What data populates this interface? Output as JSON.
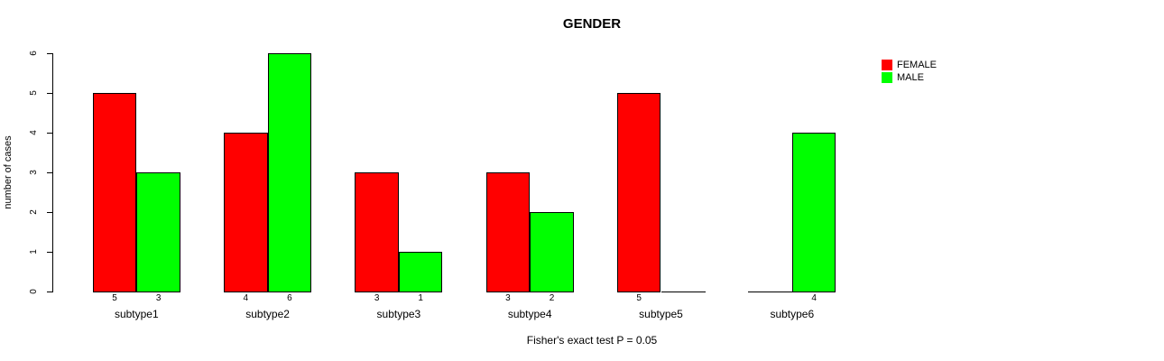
{
  "chart_data": {
    "type": "bar",
    "title": "GENDER",
    "ylabel": "number of cases",
    "xlabel": "",
    "caption": "Fisher's exact test P = 0.05",
    "categories": [
      "subtype1",
      "subtype2",
      "subtype3",
      "subtype4",
      "subtype5",
      "subtype6"
    ],
    "series": [
      {
        "name": "FEMALE",
        "color": "#FF0000",
        "values": [
          5,
          4,
          3,
          3,
          5,
          0
        ]
      },
      {
        "name": "MALE",
        "color": "#00FF00",
        "values": [
          3,
          6,
          1,
          2,
          0,
          4
        ]
      }
    ],
    "bar_value_labels_shown_only_when_nonzero": true,
    "ylim": [
      0,
      6
    ],
    "ytick_step": 1,
    "yticks": [
      0,
      1,
      2,
      3,
      4,
      5,
      6
    ],
    "grid": false,
    "legend_position": "top-right",
    "bar_border_color": "#000000",
    "axis_color": "#000000",
    "background_color": "#FFFFFF"
  }
}
